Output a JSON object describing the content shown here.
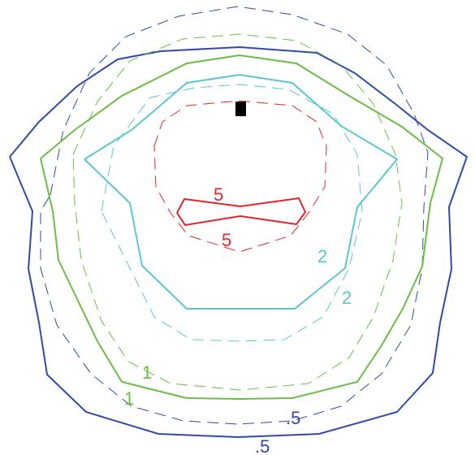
{
  "figure": {
    "contours": [
      {
        "id": "blue",
        "color": "#2f4aa8",
        "solid_label": ".5",
        "dashed_label": ".5"
      },
      {
        "id": "green",
        "color": "#6bbd45",
        "solid_label": "1",
        "dashed_label": "1"
      },
      {
        "id": "cyan",
        "color": "#5cc6d0",
        "solid_label": "2",
        "dashed_label": "2"
      },
      {
        "id": "red",
        "color": "#e0262b",
        "solid_label": "5",
        "dashed_label": "5"
      }
    ],
    "marker_color": "#000000"
  }
}
